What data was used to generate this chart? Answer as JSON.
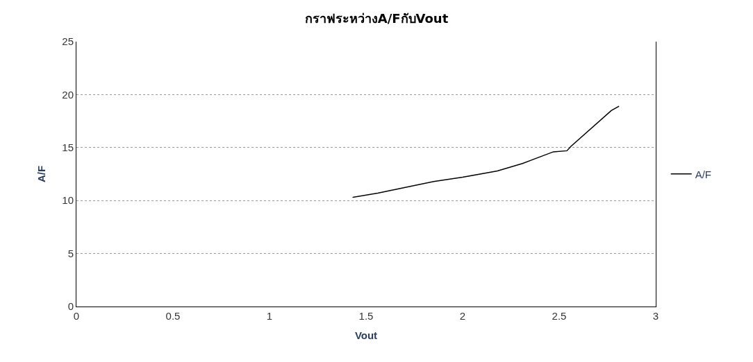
{
  "chart_data": {
    "type": "line",
    "title": "กราฟระหว่างA/FกับVout",
    "xlabel": "Vout",
    "ylabel": "A/F",
    "series": [
      {
        "name": "A/F",
        "color": "#000000",
        "x": [
          1.43,
          1.56,
          1.85,
          2.0,
          2.18,
          2.31,
          2.47,
          2.54,
          2.56,
          2.77,
          2.81
        ],
        "values": [
          10.3,
          10.7,
          11.8,
          12.2,
          12.8,
          13.5,
          14.6,
          14.7,
          15.1,
          18.5,
          18.9
        ]
      }
    ],
    "xlim": [
      0,
      3
    ],
    "xticks": [
      0,
      0.5,
      1,
      1.5,
      2,
      2.5,
      3
    ],
    "ylim": [
      0,
      25
    ],
    "yticks": [
      0,
      5,
      10,
      15,
      20,
      25
    ],
    "grid": "y",
    "legend": "right",
    "marker": "none",
    "line_style": "solid"
  }
}
